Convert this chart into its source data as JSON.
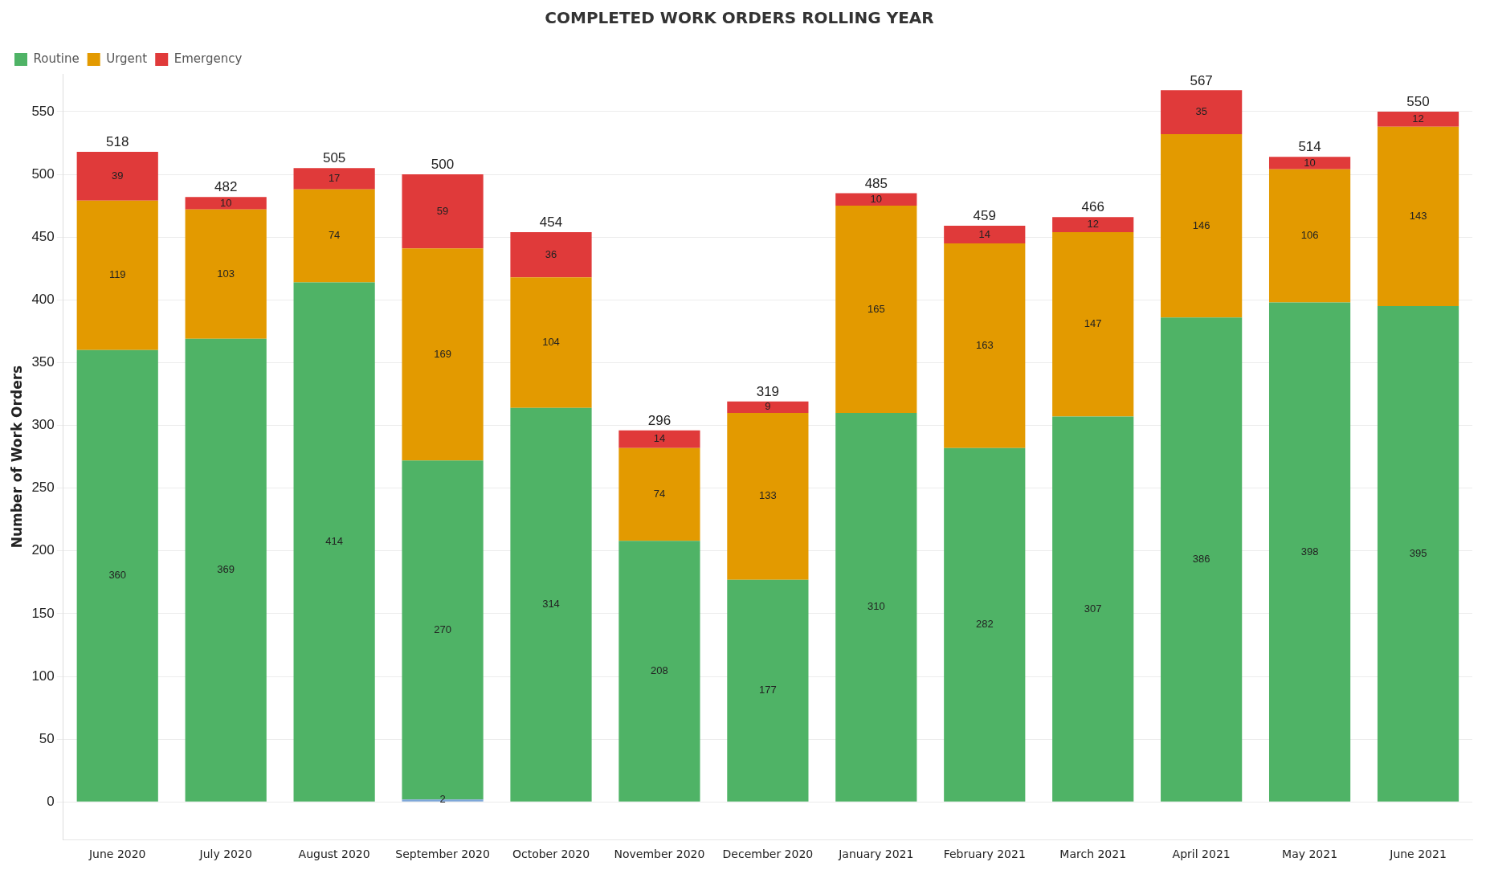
{
  "chart_data": {
    "type": "bar",
    "title": "COMPLETED WORK ORDERS ROLLING YEAR",
    "ylabel": "Number of Work Orders",
    "categories": [
      "June 2020",
      "July 2020",
      "August 2020",
      "September 2020",
      "October 2020",
      "November 2020",
      "December 2020",
      "January 2021",
      "February 2021",
      "March 2021",
      "April 2021",
      "May 2021",
      "June 2021"
    ],
    "stacked": true,
    "series": [
      {
        "color": "#7fa7d9",
        "values": [
          null,
          null,
          null,
          2,
          null,
          null,
          null,
          null,
          null,
          null,
          null,
          null,
          null
        ]
      },
      {
        "name": "Routine",
        "color": "#4fb366",
        "values": [
          360,
          369,
          414,
          270,
          314,
          208,
          177,
          310,
          282,
          307,
          386,
          398,
          395
        ]
      },
      {
        "name": "Urgent",
        "color": "#e39a00",
        "values": [
          119,
          103,
          74,
          169,
          104,
          74,
          133,
          165,
          163,
          147,
          146,
          106,
          143
        ]
      },
      {
        "name": "Emergency",
        "color": "#e03a3a",
        "values": [
          39,
          10,
          17,
          59,
          36,
          14,
          9,
          10,
          14,
          12,
          35,
          10,
          12
        ]
      }
    ],
    "totals": [
      "518",
      "482",
      "505",
      "500",
      "454",
      "296",
      "319",
      "485",
      "459",
      "466",
      "567",
      "514",
      "550"
    ],
    "data_labels": true,
    "ylim": [
      -30,
      580
    ],
    "yticks": [
      0,
      50,
      100,
      150,
      200,
      250,
      300,
      350,
      400,
      450,
      500,
      550
    ],
    "grid": "y",
    "legend": "top left"
  }
}
